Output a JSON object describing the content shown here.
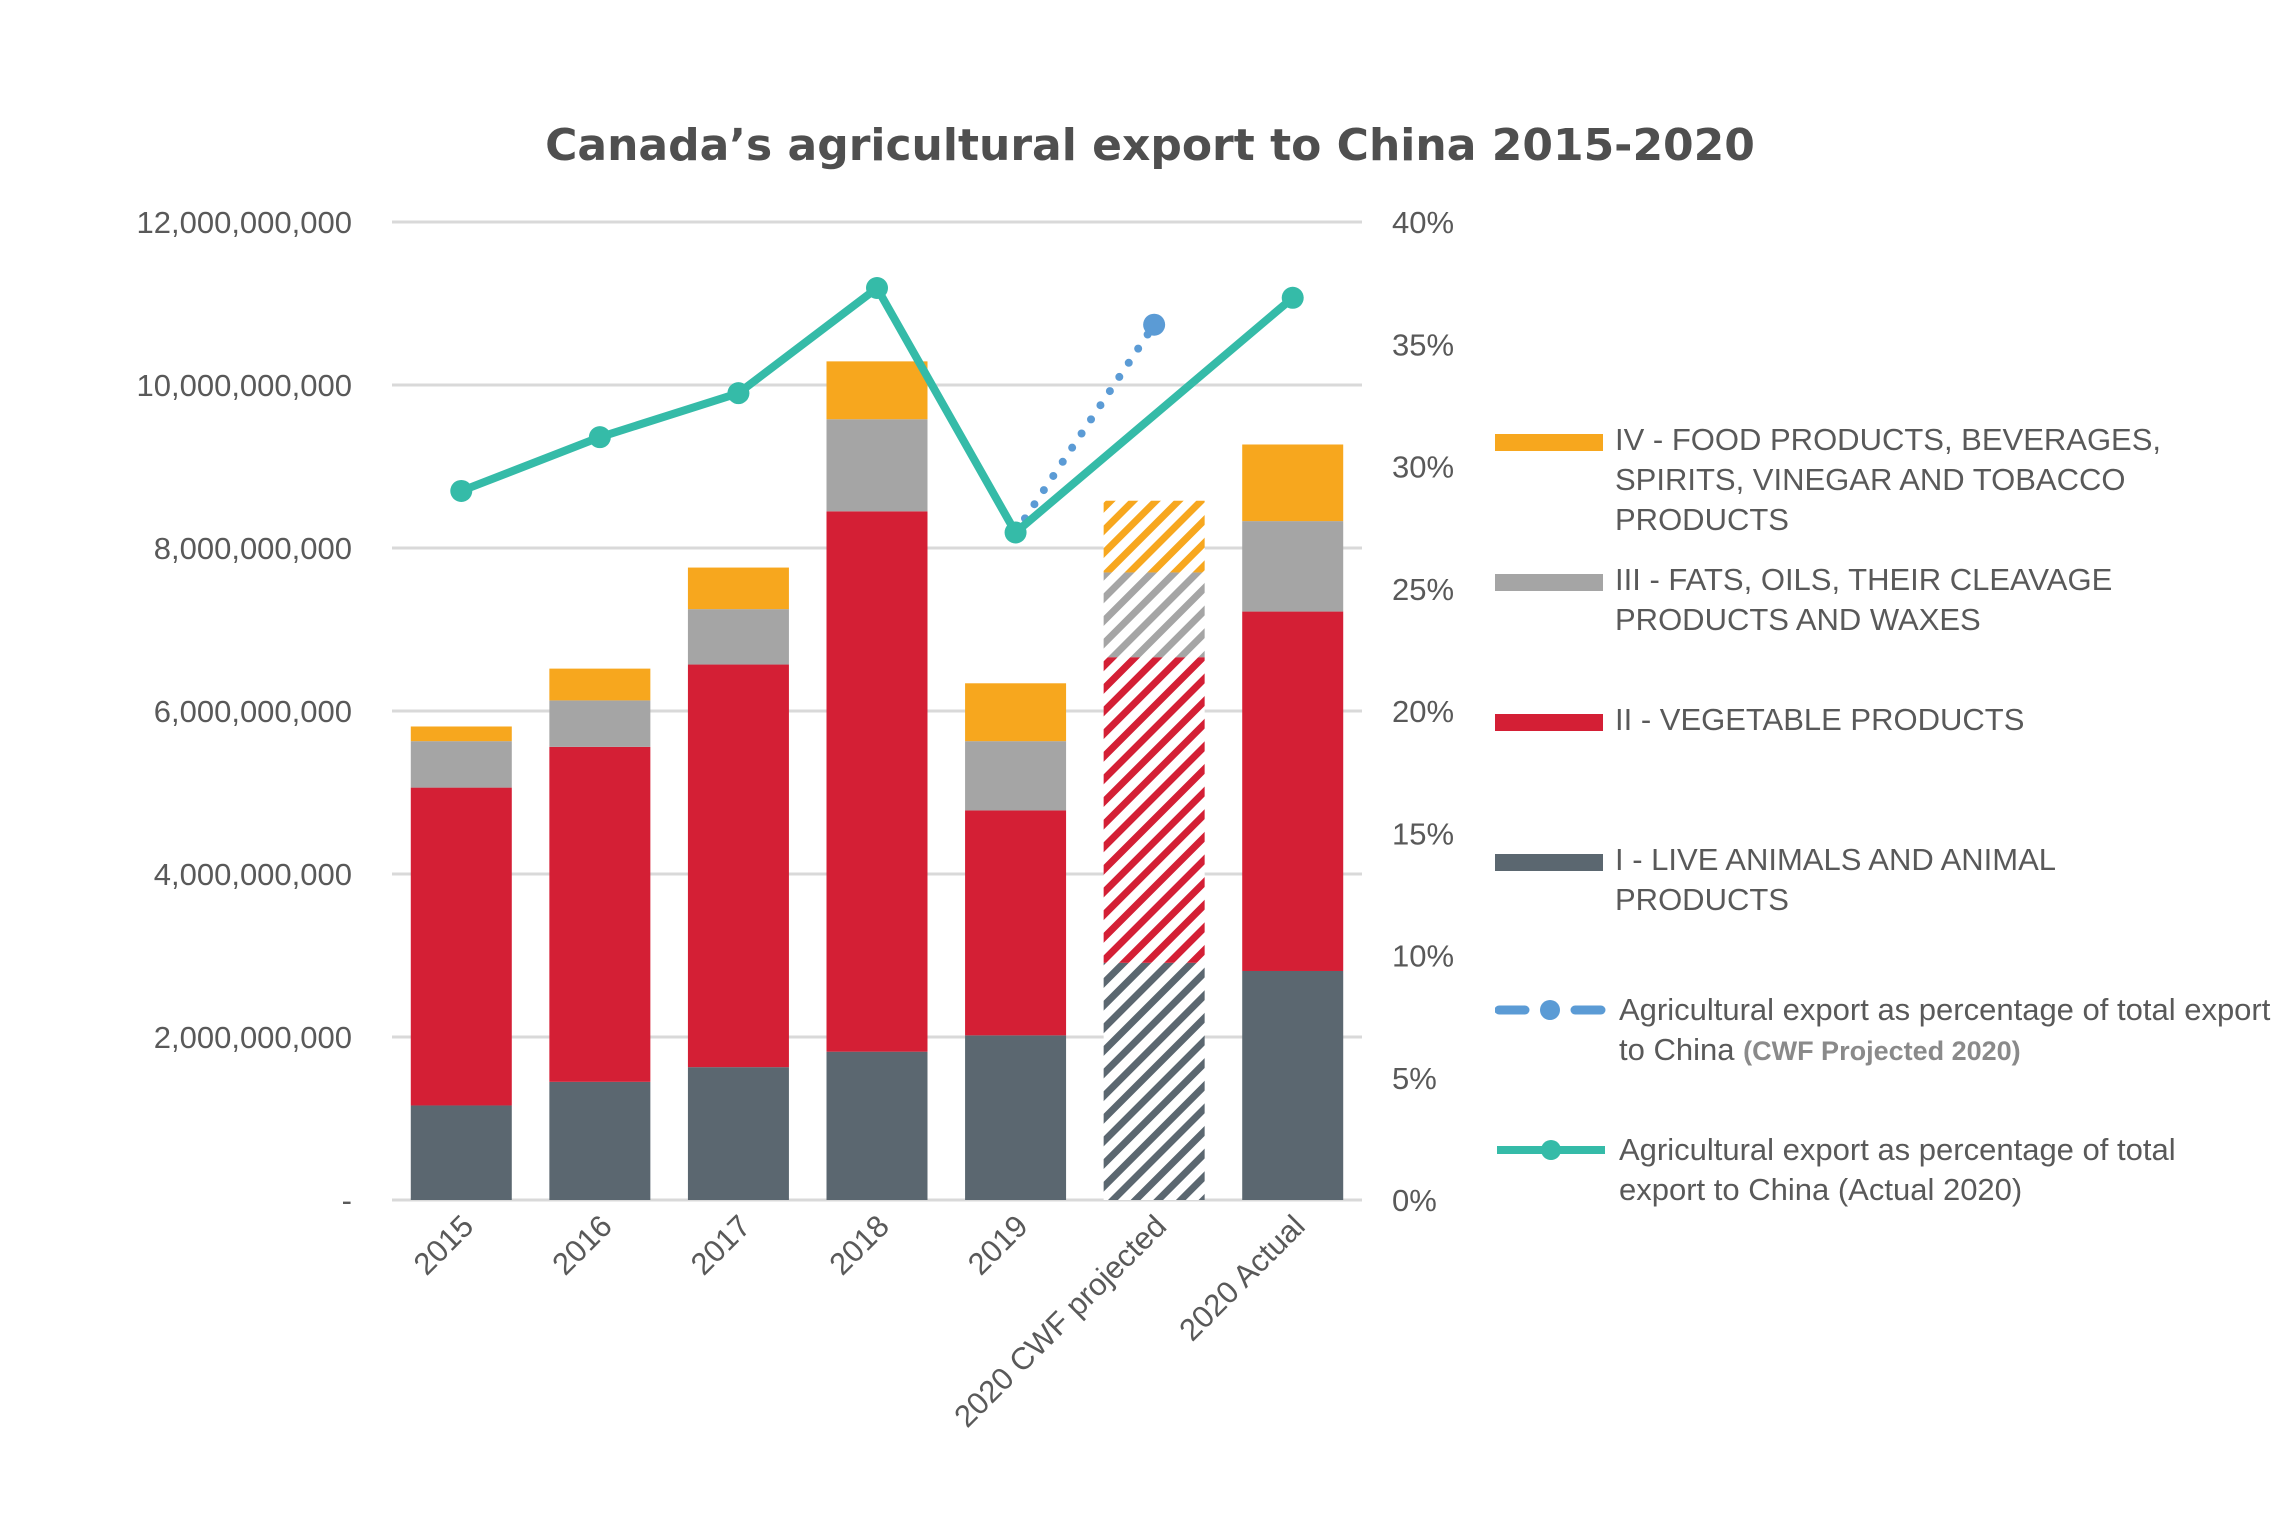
{
  "chart_data": {
    "type": "bar",
    "title": "Canada’s agricultural export to China 2015-2020",
    "categories": [
      "2015",
      "2016",
      "2017",
      "2018",
      "2019",
      "2020 CWF projected",
      "2020 Actual"
    ],
    "hatched_categories": [
      "2020 CWF projected"
    ],
    "y_left": {
      "ylim": [
        0,
        12000000000
      ],
      "ticks": [
        0,
        2000000000,
        4000000000,
        6000000000,
        8000000000,
        10000000000,
        12000000000
      ],
      "tick_labels": [
        "-",
        "2,000,000,000",
        "4,000,000,000",
        "6,000,000,000",
        "8,000,000,000",
        "10,000,000,000",
        "12,000,000,000"
      ]
    },
    "y_right": {
      "ylim": [
        0,
        40
      ],
      "ticks": [
        0,
        5,
        10,
        15,
        20,
        25,
        30,
        35,
        40
      ],
      "tick_labels": [
        "0%",
        "5%",
        "10%",
        "15%",
        "20%",
        "25%",
        "30%",
        "35%",
        "40%"
      ]
    },
    "grid": true,
    "legend_position": "right",
    "stacked_series": [
      {
        "name": "I - LIVE ANIMALS AND ANIMAL PRODUCTS",
        "color": "#5b6770",
        "values": [
          1160000000,
          1450000000,
          1630000000,
          1820000000,
          2020000000,
          2910000000,
          2810000000
        ]
      },
      {
        "name": "II - VEGETABLE PRODUCTS",
        "color": "#d41f35",
        "values": [
          3900000000,
          4110000000,
          4940000000,
          6630000000,
          2760000000,
          3750000000,
          4410000000
        ]
      },
      {
        "name": "III - FATS, OILS, THEIR CLEAVAGE PRODUCTS AND WAXES",
        "color": "#a5a5a5",
        "values": [
          570000000,
          570000000,
          680000000,
          1130000000,
          850000000,
          1040000000,
          1110000000
        ]
      },
      {
        "name": "IV - FOOD PRODUCTS, BEVERAGES, SPIRITS, VINEGAR AND TOBACCO PRODUCTS",
        "color": "#f7a71e",
        "values": [
          180000000,
          390000000,
          510000000,
          710000000,
          710000000,
          880000000,
          940000000
        ]
      }
    ],
    "line_series": [
      {
        "name": "Agricultural export as percentage of total export to China (CWF Projected 2020)",
        "name_main": "Agricultural export as percentage of total export to China",
        "name_suffix": "(CWF Projected 2020)",
        "color": "#5b9bd5",
        "style": "dotted",
        "axis": "right",
        "points": [
          {
            "category": "2019",
            "value": 27.3
          },
          {
            "category": "2020 CWF projected",
            "value": 35.8
          }
        ]
      },
      {
        "name": "Agricultural export as percentage of total export to China (Actual 2020)",
        "name_main": "Agricultural export as percentage of total export to China",
        "name_suffix": "(Actual 2020)",
        "color": "#35bba8",
        "style": "solid",
        "axis": "right",
        "points": [
          {
            "category": "2015",
            "value": 29.0
          },
          {
            "category": "2016",
            "value": 31.2
          },
          {
            "category": "2017",
            "value": 33.0
          },
          {
            "category": "2018",
            "value": 37.3
          },
          {
            "category": "2019",
            "value": 27.3
          },
          {
            "category": "2020 Actual",
            "value": 36.9
          }
        ]
      }
    ]
  },
  "legend": {
    "items": [
      {
        "label": "IV - FOOD PRODUCTS, BEVERAGES, SPIRITS, VINEGAR AND TOBACCO PRODUCTS",
        "color": "#f7a71e"
      },
      {
        "label": "III - FATS, OILS, THEIR CLEAVAGE PRODUCTS AND WAXES",
        "color": "#a5a5a5"
      },
      {
        "label": "II - VEGETABLE PRODUCTS",
        "color": "#d41f35"
      },
      {
        "label": "I - LIVE ANIMALS AND ANIMAL PRODUCTS",
        "color": "#5b6770"
      }
    ],
    "projected_line": {
      "main": "Agricultural export as percentage of total export to China",
      "suffix": "(CWF Projected 2020)"
    },
    "actual_line": {
      "main": "Agricultural export as percentage of total export to China",
      "suffix": "(Actual 2020)"
    }
  }
}
